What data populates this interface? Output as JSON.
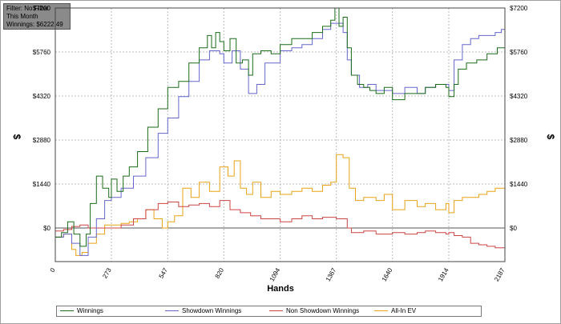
{
  "info": {
    "filter": "Filter: No Filter",
    "period": "This Month",
    "winnings": "Winnings: $6222.49"
  },
  "colors": {
    "winnings": "#1a6b1a",
    "showdown": "#6666cc",
    "non_showdown": "#cc4444",
    "allin_ev": "#e8a317",
    "grid": "#bbbbbb"
  },
  "chart_data": {
    "type": "line",
    "xlabel": "Hands",
    "ylabel": "$",
    "xlim": [
      0,
      2187
    ],
    "ylim": [
      -1100,
      7200
    ],
    "x_ticks": [
      "0",
      "273",
      "547",
      "820",
      "1094",
      "1367",
      "1640",
      "1914",
      "2187"
    ],
    "x_tick_values": [
      0,
      273,
      547,
      820,
      1094,
      1367,
      1640,
      1914,
      2187
    ],
    "y_ticks": [
      "$7200",
      "$5760",
      "$4320",
      "$2880",
      "$1440",
      "$0"
    ],
    "y_tick_values": [
      7200,
      5760,
      4320,
      2880,
      1440,
      0
    ],
    "grid": true,
    "legend_position": "bottom",
    "series": [
      {
        "name": "Winnings",
        "color_key": "winnings",
        "x": [
          0,
          30,
          60,
          90,
          120,
          150,
          170,
          200,
          230,
          260,
          273,
          300,
          330,
          360,
          400,
          450,
          500,
          547,
          600,
          650,
          700,
          740,
          760,
          780,
          800,
          820,
          850,
          880,
          910,
          940,
          960,
          1000,
          1050,
          1094,
          1150,
          1200,
          1250,
          1300,
          1340,
          1360,
          1380,
          1400,
          1420,
          1440,
          1470,
          1500,
          1530,
          1560,
          1600,
          1640,
          1700,
          1760,
          1800,
          1850,
          1900,
          1914,
          1940,
          1960,
          2000,
          2050,
          2100,
          2150,
          2187
        ],
        "y": [
          -300,
          -150,
          200,
          -200,
          -600,
          -200,
          800,
          1700,
          1300,
          1000,
          1600,
          1200,
          1700,
          2000,
          2500,
          3300,
          3900,
          4600,
          4800,
          5400,
          5900,
          6300,
          5900,
          6400,
          6100,
          5800,
          6200,
          5400,
          5500,
          5000,
          5700,
          5800,
          5700,
          6000,
          6200,
          6200,
          6400,
          6600,
          6800,
          7200,
          6600,
          6900,
          5900,
          5000,
          4700,
          4600,
          4500,
          4400,
          4600,
          4200,
          4400,
          4400,
          4600,
          4700,
          4600,
          4300,
          4700,
          5200,
          5400,
          5500,
          5700,
          5900,
          6000
        ]
      },
      {
        "name": "Showdown Winnings",
        "color_key": "showdown",
        "x": [
          0,
          40,
          80,
          120,
          160,
          200,
          240,
          273,
          320,
          380,
          440,
          500,
          547,
          600,
          650,
          700,
          750,
          800,
          820,
          860,
          900,
          940,
          980,
          1020,
          1094,
          1150,
          1200,
          1250,
          1300,
          1340,
          1380,
          1400,
          1420,
          1440,
          1480,
          1520,
          1560,
          1600,
          1640,
          1700,
          1760,
          1800,
          1850,
          1900,
          1914,
          1940,
          1980,
          2020,
          2060,
          2100,
          2140,
          2170,
          2187
        ],
        "y": [
          -300,
          -200,
          -500,
          -900,
          -300,
          300,
          900,
          1000,
          1300,
          1700,
          2300,
          3100,
          3600,
          4300,
          4800,
          5500,
          5800,
          5700,
          5400,
          5800,
          5200,
          4400,
          4700,
          5400,
          5800,
          5900,
          6000,
          6200,
          6500,
          6700,
          6700,
          6400,
          5500,
          5000,
          4600,
          4700,
          4500,
          4500,
          4400,
          4600,
          4400,
          4600,
          4700,
          4700,
          4500,
          5500,
          6000,
          6200,
          6300,
          6300,
          6400,
          6500,
          6900
        ]
      },
      {
        "name": "Non Showdown Winnings",
        "color_key": "non_showdown",
        "x": [
          0,
          40,
          80,
          120,
          160,
          200,
          240,
          273,
          320,
          380,
          440,
          500,
          547,
          600,
          650,
          700,
          750,
          800,
          850,
          900,
          950,
          1000,
          1094,
          1150,
          1200,
          1250,
          1300,
          1367,
          1420,
          1440,
          1500,
          1560,
          1640,
          1700,
          1760,
          1800,
          1850,
          1900,
          1914,
          1940,
          1980,
          2020,
          2060,
          2100,
          2140,
          2187
        ],
        "y": [
          -100,
          -50,
          50,
          100,
          0,
          0,
          0,
          0,
          100,
          300,
          600,
          800,
          850,
          700,
          750,
          800,
          700,
          900,
          600,
          500,
          400,
          300,
          200,
          300,
          400,
          300,
          350,
          300,
          0,
          -150,
          -100,
          -200,
          -150,
          -200,
          -150,
          -100,
          -150,
          -200,
          -150,
          -250,
          -300,
          -500,
          -550,
          -600,
          -650,
          -650
        ]
      },
      {
        "name": "All-In EV",
        "color_key": "allin_ev",
        "x": [
          0,
          40,
          80,
          100,
          130,
          160,
          200,
          240,
          273,
          320,
          360,
          400,
          440,
          480,
          520,
          547,
          580,
          620,
          660,
          700,
          750,
          800,
          840,
          870,
          900,
          930,
          960,
          1000,
          1050,
          1094,
          1150,
          1200,
          1250,
          1300,
          1340,
          1367,
          1400,
          1430,
          1460,
          1500,
          1560,
          1600,
          1640,
          1700,
          1760,
          1800,
          1850,
          1900,
          1914,
          1940,
          1980,
          2020,
          2060,
          2100,
          2140,
          2187
        ],
        "y": [
          -300,
          -200,
          -700,
          -900,
          -800,
          -500,
          -200,
          100,
          100,
          150,
          200,
          300,
          600,
          300,
          0,
          200,
          400,
          1300,
          1000,
          1500,
          1200,
          2000,
          1700,
          2200,
          1300,
          1100,
          1500,
          1000,
          1200,
          1100,
          1200,
          1300,
          1200,
          1400,
          1500,
          2400,
          2300,
          1300,
          900,
          1000,
          900,
          1100,
          600,
          900,
          700,
          800,
          600,
          800,
          500,
          900,
          1000,
          1000,
          1100,
          1200,
          1300,
          1400
        ]
      }
    ]
  },
  "legend": {
    "winnings": "Winnings",
    "showdown": "Showdown Winnings",
    "non_showdown": "Non Showdown Winnings",
    "allin_ev": "All-In EV"
  }
}
